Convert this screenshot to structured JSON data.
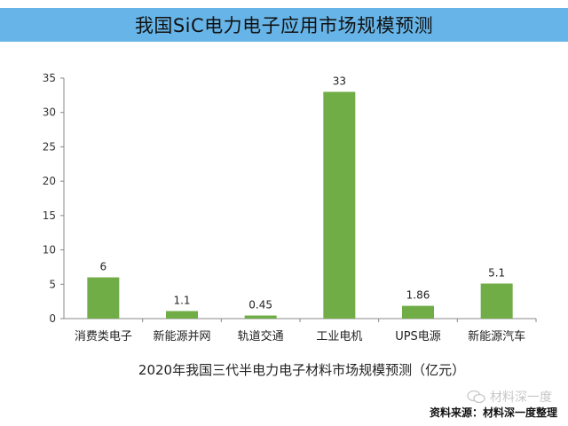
{
  "header": {
    "title": "我国SiC电力电子应用市场规模预测"
  },
  "chart_data": {
    "type": "bar",
    "categories": [
      "消费类电子",
      "新能源并网",
      "轨道交通",
      "工业电机",
      "UPS电源",
      "新能源汽车"
    ],
    "values": [
      6,
      1.1,
      0.45,
      33,
      1.86,
      5.1
    ],
    "value_labels": [
      "6",
      "1.1",
      "0.45",
      "33",
      "1.86",
      "5.1"
    ],
    "ylim": [
      0,
      35
    ],
    "yticks": [
      0,
      5,
      10,
      15,
      20,
      25,
      30,
      35
    ],
    "xlabel": "2020年我国三代半电力电子材料市场规模预测（亿元）",
    "ylabel": "",
    "grid": false,
    "legend": "none",
    "bar_color": "#70ad47"
  },
  "footer": {
    "watermark": "材料深一度",
    "source": "资料来源：材料深一度整理"
  }
}
